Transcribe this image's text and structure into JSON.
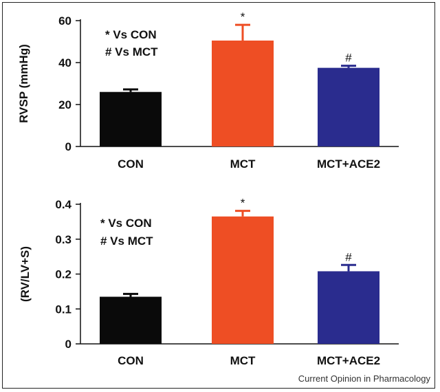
{
  "colors": {
    "CON": "#0a0a0a",
    "MCT": "#ee4e24",
    "MCT+ACE2": "#2a2c8e",
    "axis": "#111111"
  },
  "credit": "Current Opinion in Pharmacology",
  "chart_data": [
    {
      "type": "bar",
      "ylabel": "RVSP (mmHg)",
      "ylim": [
        0,
        60
      ],
      "yticks": [
        0,
        20,
        40,
        60
      ],
      "tick_labels": [
        "0",
        "20",
        "40",
        "60"
      ],
      "categories": [
        "CON",
        "MCT",
        "MCT+ACE2"
      ],
      "values": [
        26,
        50.5,
        37.5
      ],
      "errors": [
        1.2,
        7.5,
        1.0
      ],
      "significance": [
        "",
        "*",
        "#"
      ],
      "legend": [
        "* Vs CON",
        "# Vs MCT"
      ],
      "grid": false
    },
    {
      "type": "bar",
      "ylabel": "(RV/LV+S)",
      "ylim": [
        0,
        0.4
      ],
      "yticks": [
        0,
        0.1,
        0.2,
        0.3,
        0.4
      ],
      "tick_labels": [
        "0",
        "0.1",
        "0.2",
        "0.3",
        "0.4"
      ],
      "categories": [
        "CON",
        "MCT",
        "MCT+ACE2"
      ],
      "values": [
        0.135,
        0.365,
        0.208
      ],
      "errors": [
        0.008,
        0.016,
        0.018
      ],
      "significance": [
        "",
        "*",
        "#"
      ],
      "legend": [
        "* Vs CON",
        "# Vs MCT"
      ],
      "grid": false
    }
  ]
}
